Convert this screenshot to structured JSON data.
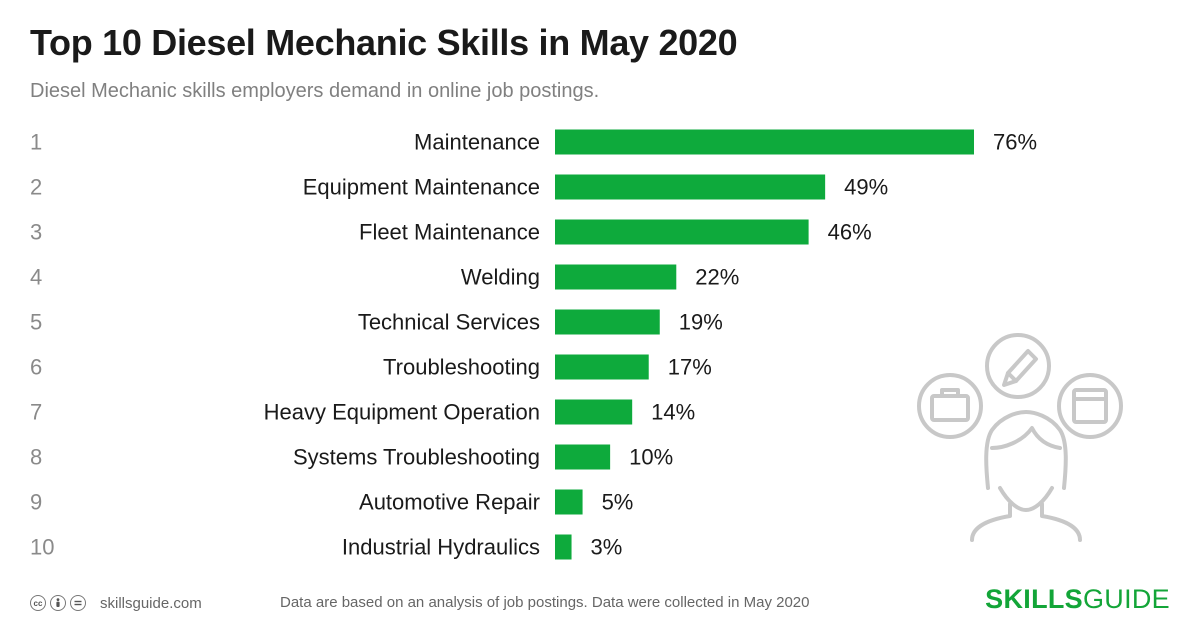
{
  "title": "Top 10 Diesel Mechanic Skills in May 2020",
  "subtitle": "Diesel Mechanic skills employers demand in online job postings.",
  "chart_data": {
    "type": "bar",
    "orientation": "horizontal",
    "categories": [
      "Maintenance",
      "Equipment Maintenance",
      "Fleet Maintenance",
      "Welding",
      "Technical Services",
      "Troubleshooting",
      "Heavy Equipment Operation",
      "Systems Troubleshooting",
      "Automotive Repair",
      "Industrial Hydraulics"
    ],
    "ranks": [
      "1",
      "2",
      "3",
      "4",
      "5",
      "6",
      "7",
      "8",
      "9",
      "10"
    ],
    "values": [
      76,
      49,
      46,
      22,
      19,
      17,
      14,
      10,
      5,
      3
    ],
    "value_labels": [
      "76%",
      "49%",
      "46%",
      "22%",
      "19%",
      "17%",
      "14%",
      "10%",
      "5%",
      "3%"
    ],
    "unit": "%",
    "xlim": [
      0,
      100
    ],
    "grid": false,
    "legend": "none",
    "bar_color": "#0eaa3c"
  },
  "footer": {
    "license_icons": [
      "cc-icon",
      "by-icon",
      "nd-icon"
    ],
    "site": "skillsguide.com",
    "note": "Data are based on an analysis of job postings. Data were collected in May 2020"
  },
  "brand": {
    "part1": "SKILLS",
    "part2": "GUIDE",
    "color": "#13a538"
  },
  "illustration": {
    "icons": [
      "briefcase-icon",
      "pencil-icon",
      "browser-window-icon",
      "person-icon"
    ],
    "color": "#c8c8c8"
  }
}
